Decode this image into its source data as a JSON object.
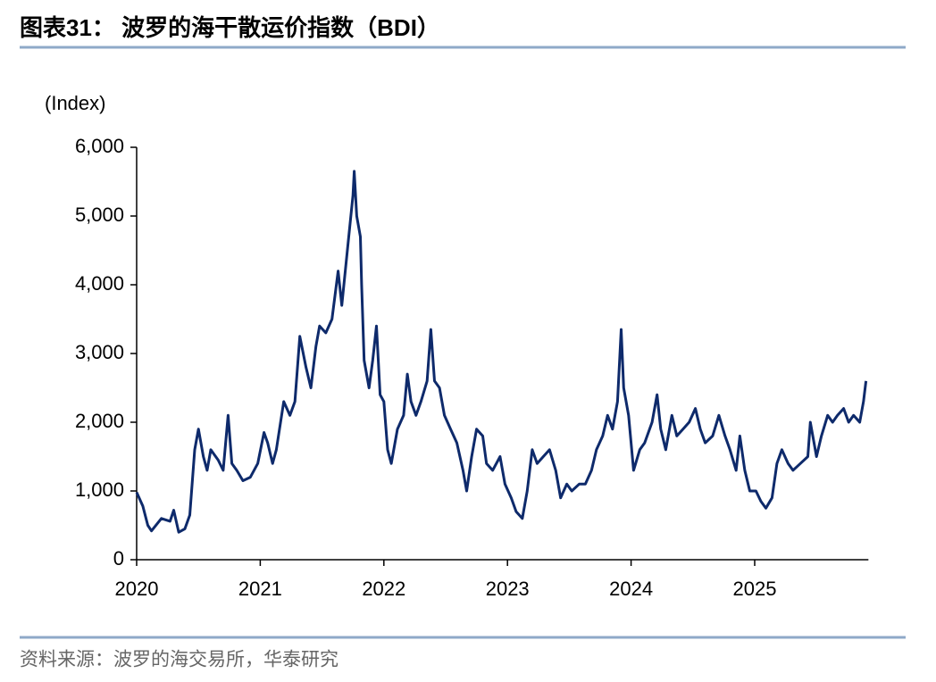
{
  "chart_data": {
    "type": "line",
    "title": "图表31：  波罗的海干散运价指数（BDI）",
    "y_label": "(Index)",
    "source": "资料来源：波罗的海交易所，华泰研究",
    "xlim": [
      2020,
      2025.92
    ],
    "xticks": [
      2020,
      2021,
      2022,
      2023,
      2024,
      2025
    ],
    "ylim": [
      0,
      6000
    ],
    "yticks": [
      0,
      {
        "value": 1000,
        "label": "1,000"
      },
      {
        "value": 2000,
        "label": "2,000"
      },
      {
        "value": 3000,
        "label": "3,000"
      },
      {
        "value": 4000,
        "label": "4,000"
      },
      {
        "value": 5000,
        "label": "5,000"
      },
      {
        "value": 6000,
        "label": "6,000"
      }
    ],
    "color": "#0e2a6b",
    "x": [
      2020.0,
      2020.05,
      2020.09,
      2020.12,
      2020.2,
      2020.27,
      2020.3,
      2020.34,
      2020.39,
      2020.43,
      2020.47,
      2020.5,
      2020.54,
      2020.57,
      2020.6,
      2020.66,
      2020.7,
      2020.74,
      2020.77,
      2020.81,
      2020.86,
      2020.92,
      2020.98,
      2021.03,
      2021.06,
      2021.1,
      2021.13,
      2021.19,
      2021.24,
      2021.28,
      2021.32,
      2021.37,
      2021.41,
      2021.45,
      2021.48,
      2021.53,
      2021.58,
      2021.63,
      2021.66,
      2021.71,
      2021.75,
      2021.76,
      2021.78,
      2021.81,
      2021.82,
      2021.84,
      2021.88,
      2021.91,
      2021.94,
      2021.97,
      2022.0,
      2022.03,
      2022.06,
      2022.11,
      2022.16,
      2022.19,
      2022.22,
      2022.26,
      2022.3,
      2022.35,
      2022.38,
      2022.41,
      2022.45,
      2022.49,
      2022.54,
      2022.59,
      2022.64,
      2022.67,
      2022.71,
      2022.75,
      2022.8,
      2022.83,
      2022.88,
      2022.94,
      2022.98,
      2023.03,
      2023.07,
      2023.12,
      2023.16,
      2023.2,
      2023.24,
      2023.29,
      2023.34,
      2023.39,
      2023.43,
      2023.48,
      2023.52,
      2023.58,
      2023.63,
      2023.68,
      2023.72,
      2023.77,
      2023.81,
      2023.85,
      2023.89,
      2023.92,
      2023.94,
      2023.98,
      2024.02,
      2024.07,
      2024.11,
      2024.17,
      2024.21,
      2024.24,
      2024.28,
      2024.33,
      2024.37,
      2024.42,
      2024.47,
      2024.52,
      2024.56,
      2024.6,
      2024.66,
      2024.71,
      2024.76,
      2024.8,
      2024.85,
      2024.88,
      2024.92,
      2024.96,
      2025.01,
      2025.05,
      2025.09,
      2025.14,
      2025.18,
      2025.22,
      2025.27,
      2025.31,
      2025.37,
      2025.43,
      2025.45,
      2025.5,
      2025.54,
      2025.59,
      2025.63,
      2025.67,
      2025.72,
      2025.76,
      2025.8,
      2025.85,
      2025.88,
      2025.9
    ],
    "values": [
      980,
      780,
      500,
      420,
      600,
      560,
      720,
      400,
      450,
      650,
      1600,
      1900,
      1500,
      1300,
      1600,
      1450,
      1300,
      2100,
      1400,
      1300,
      1150,
      1200,
      1400,
      1850,
      1700,
      1400,
      1600,
      2300,
      2100,
      2300,
      3250,
      2800,
      2500,
      3100,
      3400,
      3300,
      3500,
      4200,
      3700,
      4600,
      5300,
      5650,
      5000,
      4700,
      4000,
      2900,
      2500,
      2900,
      3400,
      2400,
      2300,
      1600,
      1400,
      1900,
      2100,
      2700,
      2300,
      2100,
      2300,
      2600,
      3350,
      2600,
      2500,
      2100,
      1900,
      1700,
      1300,
      1000,
      1500,
      1900,
      1800,
      1400,
      1300,
      1500,
      1100,
      900,
      700,
      600,
      1000,
      1600,
      1400,
      1500,
      1600,
      1300,
      900,
      1100,
      1000,
      1100,
      1100,
      1300,
      1600,
      1800,
      2100,
      1900,
      2300,
      3350,
      2500,
      2100,
      1300,
      1600,
      1700,
      2000,
      2400,
      1900,
      1600,
      2100,
      1800,
      1900,
      2000,
      2200,
      1900,
      1700,
      1800,
      2100,
      1800,
      1600,
      1300,
      1800,
      1300,
      1000,
      1000,
      850,
      750,
      900,
      1400,
      1600,
      1400,
      1300,
      1400,
      1500,
      2000,
      1500,
      1800,
      2100,
      2000,
      2100,
      2200,
      2000,
      2100,
      2000,
      2300,
      2600
    ]
  }
}
